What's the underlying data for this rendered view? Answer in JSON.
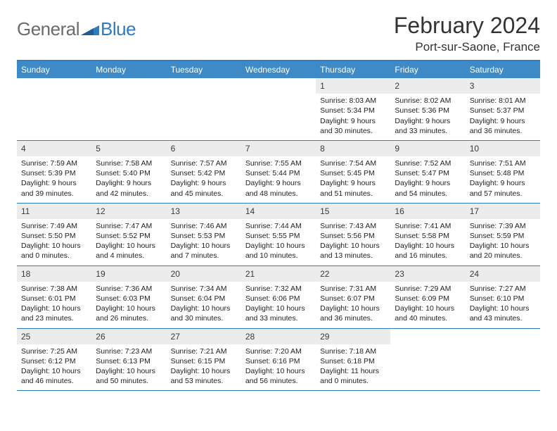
{
  "logo": {
    "general": "General",
    "blue": "Blue"
  },
  "header": {
    "title": "February 2024",
    "location": "Port-sur-Saone, France"
  },
  "colors": {
    "header_bar": "#3d8ac6",
    "border": "#2f7bbf",
    "daynum_bg": "#ececec",
    "logo_general": "#6b6b6b",
    "logo_blue": "#2f7bbf"
  },
  "weekdays": [
    "Sunday",
    "Monday",
    "Tuesday",
    "Wednesday",
    "Thursday",
    "Friday",
    "Saturday"
  ],
  "weeks": [
    [
      null,
      null,
      null,
      null,
      {
        "n": "1",
        "sr": "Sunrise: 8:03 AM",
        "ss": "Sunset: 5:34 PM",
        "dl": "Daylight: 9 hours and 30 minutes."
      },
      {
        "n": "2",
        "sr": "Sunrise: 8:02 AM",
        "ss": "Sunset: 5:36 PM",
        "dl": "Daylight: 9 hours and 33 minutes."
      },
      {
        "n": "3",
        "sr": "Sunrise: 8:01 AM",
        "ss": "Sunset: 5:37 PM",
        "dl": "Daylight: 9 hours and 36 minutes."
      }
    ],
    [
      {
        "n": "4",
        "sr": "Sunrise: 7:59 AM",
        "ss": "Sunset: 5:39 PM",
        "dl": "Daylight: 9 hours and 39 minutes."
      },
      {
        "n": "5",
        "sr": "Sunrise: 7:58 AM",
        "ss": "Sunset: 5:40 PM",
        "dl": "Daylight: 9 hours and 42 minutes."
      },
      {
        "n": "6",
        "sr": "Sunrise: 7:57 AM",
        "ss": "Sunset: 5:42 PM",
        "dl": "Daylight: 9 hours and 45 minutes."
      },
      {
        "n": "7",
        "sr": "Sunrise: 7:55 AM",
        "ss": "Sunset: 5:44 PM",
        "dl": "Daylight: 9 hours and 48 minutes."
      },
      {
        "n": "8",
        "sr": "Sunrise: 7:54 AM",
        "ss": "Sunset: 5:45 PM",
        "dl": "Daylight: 9 hours and 51 minutes."
      },
      {
        "n": "9",
        "sr": "Sunrise: 7:52 AM",
        "ss": "Sunset: 5:47 PM",
        "dl": "Daylight: 9 hours and 54 minutes."
      },
      {
        "n": "10",
        "sr": "Sunrise: 7:51 AM",
        "ss": "Sunset: 5:48 PM",
        "dl": "Daylight: 9 hours and 57 minutes."
      }
    ],
    [
      {
        "n": "11",
        "sr": "Sunrise: 7:49 AM",
        "ss": "Sunset: 5:50 PM",
        "dl": "Daylight: 10 hours and 0 minutes."
      },
      {
        "n": "12",
        "sr": "Sunrise: 7:47 AM",
        "ss": "Sunset: 5:52 PM",
        "dl": "Daylight: 10 hours and 4 minutes."
      },
      {
        "n": "13",
        "sr": "Sunrise: 7:46 AM",
        "ss": "Sunset: 5:53 PM",
        "dl": "Daylight: 10 hours and 7 minutes."
      },
      {
        "n": "14",
        "sr": "Sunrise: 7:44 AM",
        "ss": "Sunset: 5:55 PM",
        "dl": "Daylight: 10 hours and 10 minutes."
      },
      {
        "n": "15",
        "sr": "Sunrise: 7:43 AM",
        "ss": "Sunset: 5:56 PM",
        "dl": "Daylight: 10 hours and 13 minutes."
      },
      {
        "n": "16",
        "sr": "Sunrise: 7:41 AM",
        "ss": "Sunset: 5:58 PM",
        "dl": "Daylight: 10 hours and 16 minutes."
      },
      {
        "n": "17",
        "sr": "Sunrise: 7:39 AM",
        "ss": "Sunset: 5:59 PM",
        "dl": "Daylight: 10 hours and 20 minutes."
      }
    ],
    [
      {
        "n": "18",
        "sr": "Sunrise: 7:38 AM",
        "ss": "Sunset: 6:01 PM",
        "dl": "Daylight: 10 hours and 23 minutes."
      },
      {
        "n": "19",
        "sr": "Sunrise: 7:36 AM",
        "ss": "Sunset: 6:03 PM",
        "dl": "Daylight: 10 hours and 26 minutes."
      },
      {
        "n": "20",
        "sr": "Sunrise: 7:34 AM",
        "ss": "Sunset: 6:04 PM",
        "dl": "Daylight: 10 hours and 30 minutes."
      },
      {
        "n": "21",
        "sr": "Sunrise: 7:32 AM",
        "ss": "Sunset: 6:06 PM",
        "dl": "Daylight: 10 hours and 33 minutes."
      },
      {
        "n": "22",
        "sr": "Sunrise: 7:31 AM",
        "ss": "Sunset: 6:07 PM",
        "dl": "Daylight: 10 hours and 36 minutes."
      },
      {
        "n": "23",
        "sr": "Sunrise: 7:29 AM",
        "ss": "Sunset: 6:09 PM",
        "dl": "Daylight: 10 hours and 40 minutes."
      },
      {
        "n": "24",
        "sr": "Sunrise: 7:27 AM",
        "ss": "Sunset: 6:10 PM",
        "dl": "Daylight: 10 hours and 43 minutes."
      }
    ],
    [
      {
        "n": "25",
        "sr": "Sunrise: 7:25 AM",
        "ss": "Sunset: 6:12 PM",
        "dl": "Daylight: 10 hours and 46 minutes."
      },
      {
        "n": "26",
        "sr": "Sunrise: 7:23 AM",
        "ss": "Sunset: 6:13 PM",
        "dl": "Daylight: 10 hours and 50 minutes."
      },
      {
        "n": "27",
        "sr": "Sunrise: 7:21 AM",
        "ss": "Sunset: 6:15 PM",
        "dl": "Daylight: 10 hours and 53 minutes."
      },
      {
        "n": "28",
        "sr": "Sunrise: 7:20 AM",
        "ss": "Sunset: 6:16 PM",
        "dl": "Daylight: 10 hours and 56 minutes."
      },
      {
        "n": "29",
        "sr": "Sunrise: 7:18 AM",
        "ss": "Sunset: 6:18 PM",
        "dl": "Daylight: 11 hours and 0 minutes."
      },
      null,
      null
    ]
  ]
}
